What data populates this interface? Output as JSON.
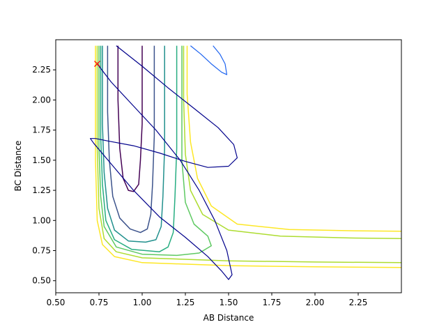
{
  "chart_data": {
    "type": "contour",
    "xlabel": "AB Distance",
    "ylabel": "BC Distance",
    "xlim": [
      0.5,
      2.5
    ],
    "ylim": [
      0.4,
      2.5
    ],
    "x_ticks": [
      "0.50",
      "0.75",
      "1.00",
      "1.25",
      "1.50",
      "1.75",
      "2.00",
      "2.25"
    ],
    "y_ticks": [
      "0.50",
      "0.75",
      "1.00",
      "1.25",
      "1.50",
      "1.75",
      "2.00",
      "2.25"
    ],
    "x_tick_values": [
      0.5,
      0.75,
      1.0,
      1.25,
      1.5,
      1.75,
      2.0,
      2.25
    ],
    "y_tick_values": [
      0.5,
      0.75,
      1.0,
      1.25,
      1.5,
      1.75,
      2.0,
      2.25
    ],
    "grid": false,
    "colormap": "viridis",
    "contours": [
      {
        "color": "#440154",
        "points": [
          [
            0.86,
            2.45
          ],
          [
            0.86,
            2.0
          ],
          [
            0.87,
            1.6
          ],
          [
            0.89,
            1.35
          ],
          [
            0.92,
            1.25
          ],
          [
            0.95,
            1.24
          ],
          [
            0.98,
            1.3
          ],
          [
            0.99,
            1.5
          ],
          [
            1.0,
            1.8
          ],
          [
            1.0,
            2.2
          ],
          [
            1.0,
            2.45
          ]
        ]
      },
      {
        "color": "#3b528b",
        "points": [
          [
            0.8,
            2.45
          ],
          [
            0.8,
            1.9
          ],
          [
            0.81,
            1.5
          ],
          [
            0.83,
            1.2
          ],
          [
            0.87,
            1.02
          ],
          [
            0.93,
            0.93
          ],
          [
            0.99,
            0.9
          ],
          [
            1.03,
            0.93
          ],
          [
            1.05,
            1.05
          ],
          [
            1.06,
            1.3
          ],
          [
            1.07,
            1.7
          ],
          [
            1.07,
            2.1
          ],
          [
            1.07,
            2.45
          ]
        ]
      },
      {
        "color": "#21908d",
        "points": [
          [
            0.77,
            2.45
          ],
          [
            0.77,
            1.8
          ],
          [
            0.78,
            1.4
          ],
          [
            0.8,
            1.1
          ],
          [
            0.84,
            0.92
          ],
          [
            0.92,
            0.83
          ],
          [
            1.02,
            0.82
          ],
          [
            1.08,
            0.84
          ],
          [
            1.11,
            0.95
          ],
          [
            1.12,
            1.2
          ],
          [
            1.13,
            1.6
          ],
          [
            1.13,
            2.0
          ],
          [
            1.13,
            2.45
          ]
        ]
      },
      {
        "color": "#27ad81",
        "points": [
          [
            0.76,
            2.45
          ],
          [
            0.76,
            1.7
          ],
          [
            0.77,
            1.3
          ],
          [
            0.79,
            1.0
          ],
          [
            0.84,
            0.84
          ],
          [
            0.94,
            0.76
          ],
          [
            1.1,
            0.74
          ],
          [
            1.15,
            0.78
          ],
          [
            1.18,
            0.9
          ],
          [
            1.19,
            1.2
          ],
          [
            1.2,
            1.6
          ],
          [
            1.2,
            2.45
          ]
        ]
      },
      {
        "color": "#5ec962",
        "points": [
          [
            0.75,
            2.45
          ],
          [
            0.75,
            1.6
          ],
          [
            0.76,
            1.2
          ],
          [
            0.78,
            0.95
          ],
          [
            0.85,
            0.78
          ],
          [
            1.0,
            0.72
          ],
          [
            1.2,
            0.71
          ],
          [
            1.33,
            0.73
          ],
          [
            1.4,
            0.79
          ],
          [
            1.38,
            0.87
          ],
          [
            1.3,
            0.97
          ],
          [
            1.25,
            1.15
          ],
          [
            1.23,
            1.5
          ],
          [
            1.23,
            2.0
          ],
          [
            1.23,
            2.45
          ]
        ]
      },
      {
        "color": "#addc30",
        "points": [
          [
            0.74,
            2.45
          ],
          [
            0.74,
            1.6
          ],
          [
            0.75,
            1.1
          ],
          [
            0.78,
            0.85
          ],
          [
            0.85,
            0.74
          ],
          [
            1.0,
            0.69
          ],
          [
            1.5,
            0.665
          ],
          [
            2.0,
            0.655
          ],
          [
            2.5,
            0.65
          ]
        ]
      },
      {
        "color": "#addc30",
        "points": [
          [
            1.24,
            2.45
          ],
          [
            1.24,
            2.0
          ],
          [
            1.25,
            1.55
          ],
          [
            1.28,
            1.25
          ],
          [
            1.35,
            1.05
          ],
          [
            1.5,
            0.92
          ],
          [
            1.8,
            0.87
          ],
          [
            2.2,
            0.855
          ],
          [
            2.5,
            0.85
          ]
        ]
      },
      {
        "color": "#fde725",
        "points": [
          [
            0.73,
            2.45
          ],
          [
            0.73,
            1.5
          ],
          [
            0.74,
            1.0
          ],
          [
            0.77,
            0.8
          ],
          [
            0.84,
            0.7
          ],
          [
            1.0,
            0.65
          ],
          [
            1.5,
            0.625
          ],
          [
            2.0,
            0.615
          ],
          [
            2.5,
            0.61
          ]
        ]
      },
      {
        "color": "#fde725",
        "points": [
          [
            1.26,
            2.45
          ],
          [
            1.26,
            2.05
          ],
          [
            1.28,
            1.65
          ],
          [
            1.32,
            1.35
          ],
          [
            1.4,
            1.12
          ],
          [
            1.55,
            0.97
          ],
          [
            1.85,
            0.925
          ],
          [
            2.2,
            0.915
          ],
          [
            2.5,
            0.91
          ]
        ]
      }
    ],
    "trajectories": [
      {
        "color": "#00008b",
        "points": [
          [
            0.74,
            2.3
          ],
          [
            0.82,
            2.15
          ],
          [
            0.95,
            1.95
          ],
          [
            1.08,
            1.75
          ],
          [
            1.22,
            1.5
          ],
          [
            1.33,
            1.25
          ],
          [
            1.42,
            1.0
          ],
          [
            1.49,
            0.75
          ],
          [
            1.52,
            0.55
          ],
          [
            1.5,
            0.51
          ],
          [
            1.46,
            0.58
          ],
          [
            1.38,
            0.7
          ],
          [
            1.25,
            0.86
          ],
          [
            1.1,
            1.03
          ],
          [
            0.95,
            1.25
          ],
          [
            0.82,
            1.47
          ],
          [
            0.72,
            1.64
          ],
          [
            0.7,
            1.68
          ],
          [
            0.73,
            1.68
          ],
          [
            0.8,
            1.66
          ],
          [
            0.95,
            1.62
          ],
          [
            1.1,
            1.56
          ],
          [
            1.25,
            1.49
          ],
          [
            1.38,
            1.44
          ],
          [
            1.5,
            1.45
          ],
          [
            1.55,
            1.52
          ],
          [
            1.53,
            1.63
          ],
          [
            1.44,
            1.77
          ],
          [
            1.3,
            1.93
          ],
          [
            1.15,
            2.1
          ],
          [
            1.0,
            2.28
          ],
          [
            0.85,
            2.45
          ]
        ]
      },
      {
        "color": "#1e64f0",
        "points": [
          [
            1.28,
            2.45
          ],
          [
            1.34,
            2.38
          ],
          [
            1.4,
            2.3
          ],
          [
            1.46,
            2.23
          ],
          [
            1.49,
            2.21
          ],
          [
            1.48,
            2.3
          ],
          [
            1.45,
            2.38
          ],
          [
            1.41,
            2.45
          ]
        ]
      }
    ],
    "marker": {
      "x": 0.74,
      "y": 2.3,
      "symbol": "x",
      "color": "#ff0000"
    }
  }
}
